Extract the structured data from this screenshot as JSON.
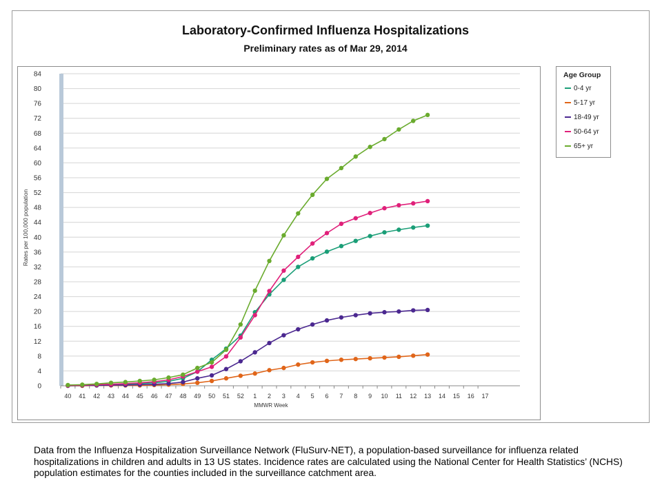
{
  "chart_data": {
    "type": "line",
    "title": "Laboratory-Confirmed Influenza Hospitalizations",
    "subtitle": "Preliminary rates as of Mar 29, 2014",
    "xlabel": "MMWR Week",
    "ylabel": "Rates per 100,000 population",
    "x_ticks": [
      "40",
      "41",
      "42",
      "43",
      "44",
      "45",
      "46",
      "47",
      "48",
      "49",
      "50",
      "51",
      "52",
      "1",
      "2",
      "3",
      "4",
      "5",
      "6",
      "7",
      "8",
      "9",
      "10",
      "11",
      "12",
      "13",
      "14",
      "15",
      "16",
      "17"
    ],
    "y_ticks": [
      0,
      4,
      8,
      12,
      16,
      20,
      24,
      28,
      32,
      36,
      40,
      44,
      48,
      52,
      56,
      60,
      64,
      68,
      72,
      76,
      80,
      84
    ],
    "ylim": [
      0,
      84
    ],
    "grid": true,
    "legend_title": "Age Group",
    "legend_position": "right",
    "series": [
      {
        "name": "0-4 yr",
        "color": "#1a9e77",
        "values": [
          0.1,
          0.2,
          0.3,
          0.4,
          0.5,
          0.6,
          0.8,
          1.2,
          2.0,
          3.8,
          7.0,
          10.0,
          13.5,
          19.8,
          24.6,
          28.5,
          32.0,
          34.3,
          36.1,
          37.6,
          39.0,
          40.3,
          41.3,
          42.0,
          42.6,
          43.1
        ]
      },
      {
        "name": "5-17 yr",
        "color": "#e06519",
        "values": [
          0.0,
          0.0,
          0.1,
          0.1,
          0.1,
          0.1,
          0.2,
          0.3,
          0.5,
          0.8,
          1.3,
          2.0,
          2.7,
          3.3,
          4.2,
          4.8,
          5.7,
          6.3,
          6.7,
          7.0,
          7.2,
          7.4,
          7.6,
          7.8,
          8.1,
          8.4
        ]
      },
      {
        "name": "18-49 yr",
        "color": "#4b2890",
        "values": [
          0.0,
          0.1,
          0.1,
          0.2,
          0.2,
          0.3,
          0.4,
          0.6,
          1.0,
          2.0,
          2.8,
          4.5,
          6.6,
          9.0,
          11.5,
          13.6,
          15.2,
          16.5,
          17.6,
          18.4,
          19.0,
          19.5,
          19.8,
          20.0,
          20.3,
          20.4
        ]
      },
      {
        "name": "50-64 yr",
        "color": "#e0207a",
        "values": [
          0.1,
          0.2,
          0.3,
          0.4,
          0.6,
          0.8,
          1.1,
          1.6,
          2.5,
          3.8,
          5.1,
          7.9,
          13.0,
          19.0,
          25.5,
          31.0,
          34.7,
          38.3,
          41.1,
          43.6,
          45.1,
          46.5,
          47.8,
          48.6,
          49.1,
          49.7
        ]
      },
      {
        "name": "65+ yr",
        "color": "#6aab2e",
        "values": [
          0.2,
          0.3,
          0.5,
          0.8,
          1.0,
          1.3,
          1.6,
          2.2,
          3.0,
          4.8,
          6.3,
          9.7,
          16.5,
          25.6,
          33.6,
          40.5,
          46.4,
          51.4,
          55.7,
          58.6,
          61.7,
          64.3,
          66.4,
          69.0,
          71.3,
          72.9
        ]
      }
    ]
  },
  "footnote": "Data from the Influenza  Hospitalization Surveillance  Network (FluSurv-NET),  a population-based surveillance  for influenza related hospitalizations in children and adults in 13 US states. Incidence rates are calculated using the National Center for Health Statistics’ (NCHS) population estimates for the counties included in the surveillance catchment area."
}
